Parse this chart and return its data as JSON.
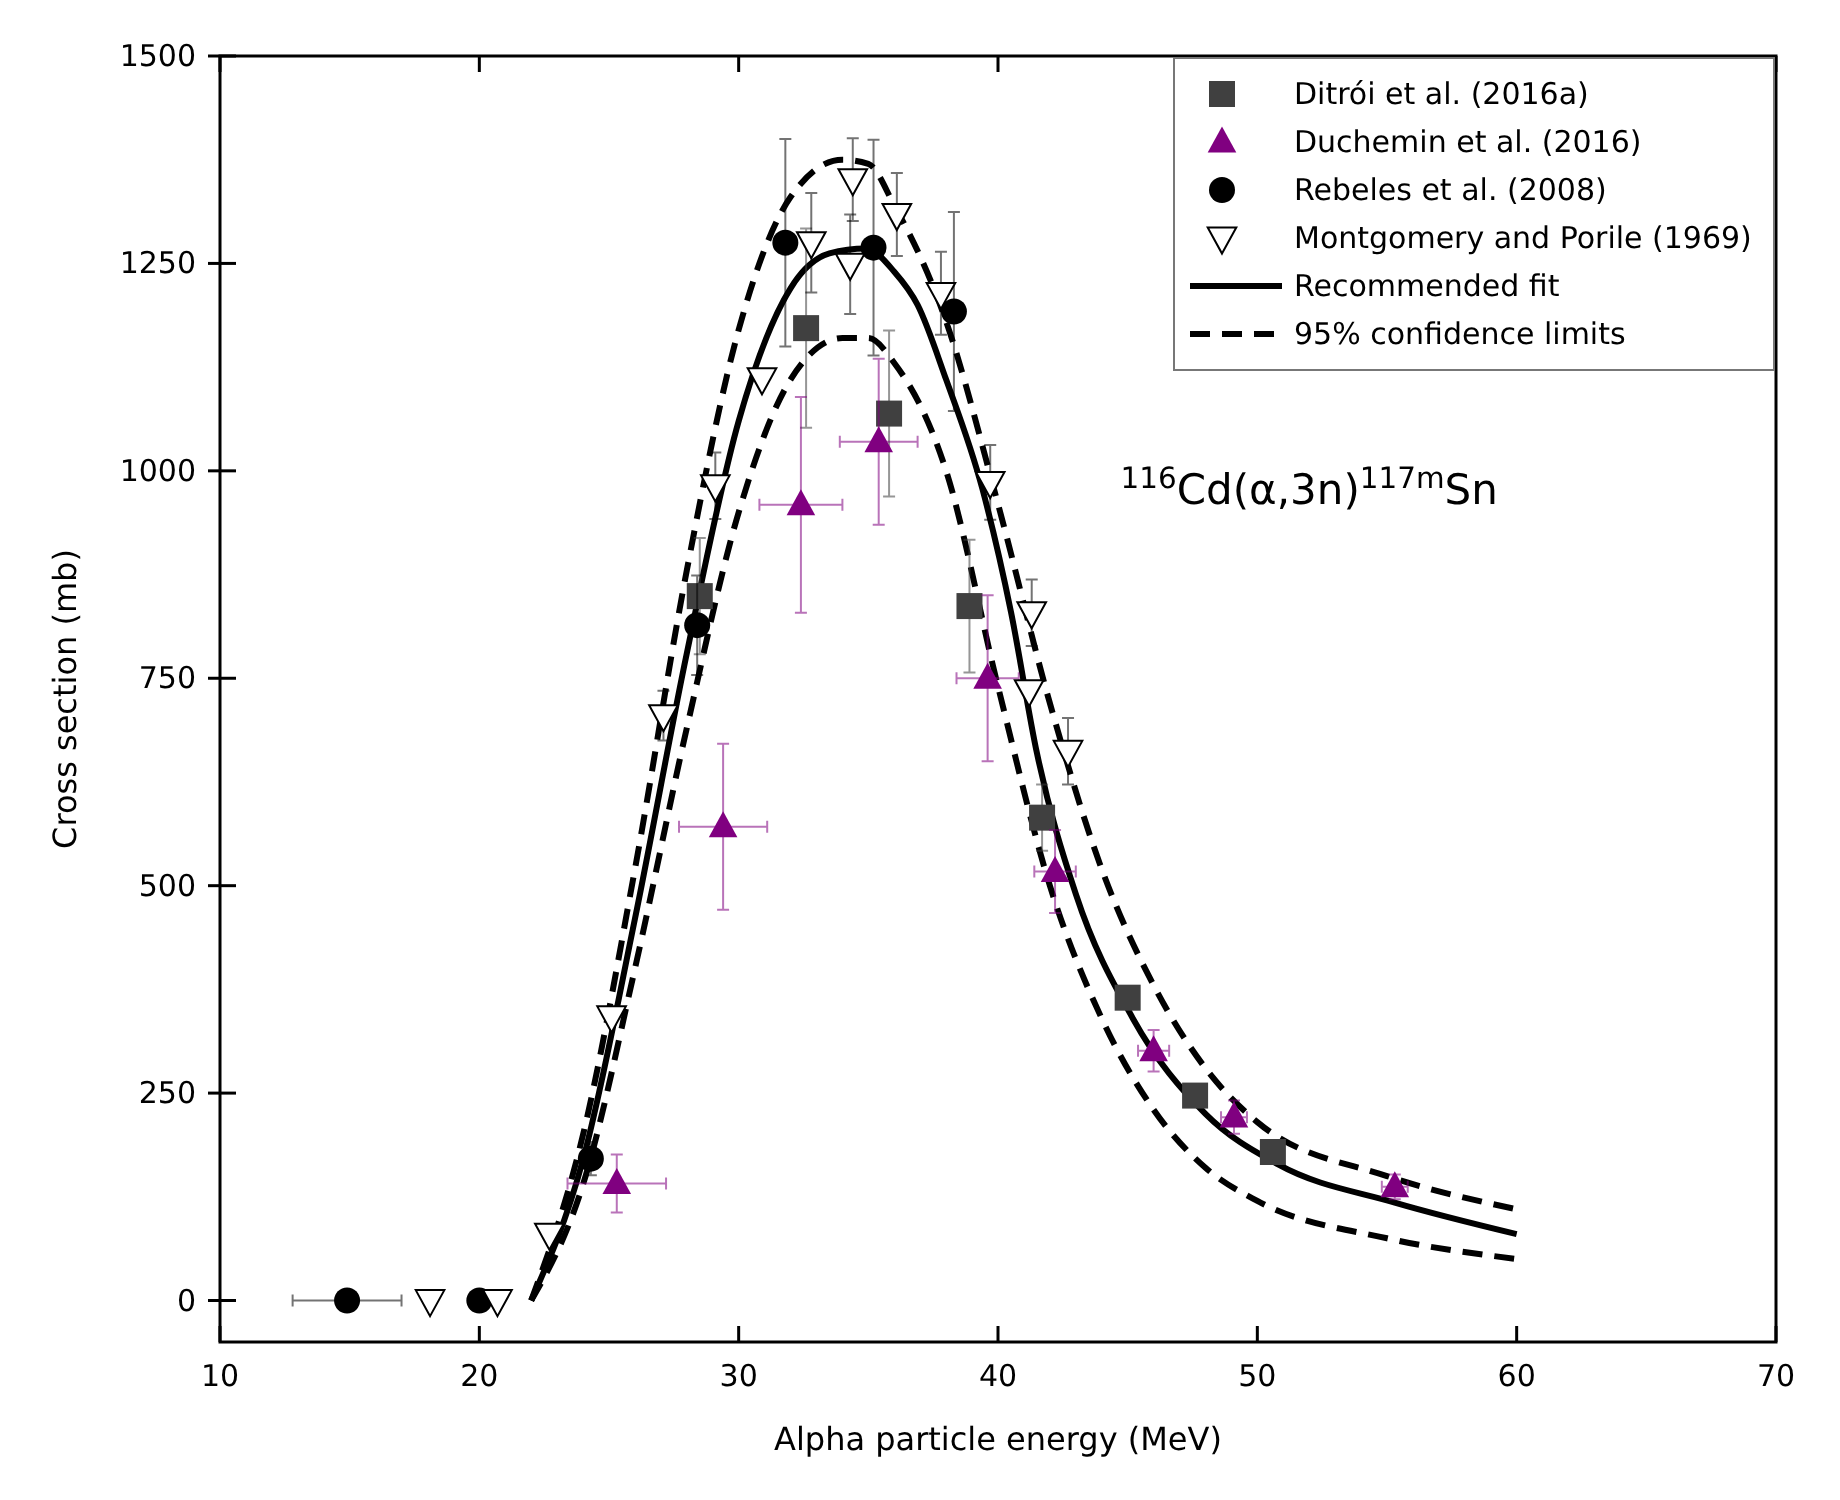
{
  "chart_data": {
    "type": "scatter",
    "xlabel": "Alpha particle energy (MeV)",
    "ylabel": "Cross section (mb)",
    "xlim": [
      10,
      70
    ],
    "xticks": [
      10,
      20,
      30,
      40,
      50,
      60,
      70
    ],
    "ylim": [
      -50,
      1500
    ],
    "yticks": [
      0,
      250,
      500,
      750,
      1000,
      1250,
      1500
    ],
    "grid": false,
    "legend": "top right",
    "annotations": [
      "$^{116}$Cd(α,3n)$^{117m}$Sn"
    ],
    "series": [
      {
        "name": "Ditrói et al. (2016a)",
        "marker": "square",
        "color": "#404040",
        "x": [
          28.5,
          32.6,
          35.8,
          38.9,
          41.7,
          45.0,
          47.6,
          50.6
        ],
        "values": [
          849,
          1172,
          1069,
          837,
          582,
          365,
          247,
          179
        ],
        "errors": [
          70,
          120,
          100,
          80,
          40,
          null,
          null,
          null
        ]
      },
      {
        "name": "Duchemin et al. (2016)",
        "marker": "triangle",
        "color": "#800080",
        "x": [
          25.3,
          29.4,
          32.4,
          35.4,
          39.6,
          42.2,
          46.0,
          49.1,
          55.3
        ],
        "values": [
          141,
          571,
          959,
          1035,
          750,
          517,
          301,
          221,
          137
        ],
        "errors": [
          35,
          100,
          130,
          100,
          100,
          50,
          25,
          20,
          15
        ],
        "xerrors": [
          1.9,
          1.7,
          1.6,
          1.5,
          1.2,
          0.8,
          0.6,
          0.5,
          0.5
        ]
      },
      {
        "name": "Rebeles et al. (2008)",
        "marker": "circle",
        "color": "#000000",
        "x": [
          14.9,
          20.0,
          24.3,
          28.4,
          31.8,
          35.2,
          38.3
        ],
        "values": [
          0,
          0,
          171,
          814,
          1275,
          1269,
          1192
        ],
        "errors": [
          null,
          null,
          20,
          60,
          125,
          130,
          120
        ],
        "xerrors": [
          2.1,
          null,
          null,
          null,
          null,
          null,
          null
        ]
      },
      {
        "name": "Montgomery and Porile (1969)",
        "marker": "triangle-down",
        "color": "#000000",
        "x": [
          18.1,
          20.7,
          22.7,
          25.1,
          27.1,
          29.1,
          30.9,
          32.8,
          34.3,
          34.4,
          36.1,
          37.8,
          39.7,
          41.2,
          41.3,
          42.7
        ],
        "values": [
          0,
          0,
          80,
          342,
          705,
          982,
          1111,
          1275,
          1249,
          1351,
          1309,
          1214,
          986,
          735,
          829,
          662
        ],
        "errors": [
          null,
          null,
          null,
          null,
          30,
          40,
          null,
          60,
          60,
          50,
          50,
          50,
          45,
          null,
          40,
          40
        ]
      },
      {
        "name": "Recommended fit",
        "type": "line",
        "line_style": "solid",
        "color": "#000000",
        "x": [
          22,
          24,
          26,
          28,
          30,
          32,
          33.5,
          34.9,
          36,
          36.9,
          38,
          39.4,
          40.5,
          41.5,
          43,
          45.2,
          48,
          50.8,
          55.3,
          60
        ],
        "values": [
          0,
          170,
          460,
          780,
          1060,
          1220,
          1262,
          1268,
          1240,
          1200,
          1110,
          978,
          830,
          660,
          490,
          340,
          225,
          164,
          118,
          80
        ]
      },
      {
        "name": "95% confidence limits",
        "type": "line",
        "line_style": "dashed",
        "color": "#000000",
        "x": [
          22,
          24,
          26,
          28,
          30,
          32,
          34,
          35,
          36,
          38,
          40,
          42,
          44,
          46,
          48,
          50,
          55,
          60
        ],
        "values": [
          0,
          200,
          520,
          880,
          1170,
          1330,
          1375,
          1370,
          1320,
          1180,
          960,
          720,
          520,
          380,
          280,
          215,
          150,
          110
        ]
      },
      {
        "type": "line",
        "line_style": "dashed",
        "color": "#000000",
        "x": [
          22,
          24,
          26,
          28,
          30,
          32,
          34,
          35,
          36,
          38,
          40,
          42,
          44,
          46,
          48,
          50,
          55,
          60
        ],
        "values": [
          0,
          140,
          400,
          690,
          950,
          1110,
          1160,
          1160,
          1130,
          1000,
          740,
          500,
          340,
          230,
          160,
          120,
          75,
          50
        ]
      }
    ]
  }
}
